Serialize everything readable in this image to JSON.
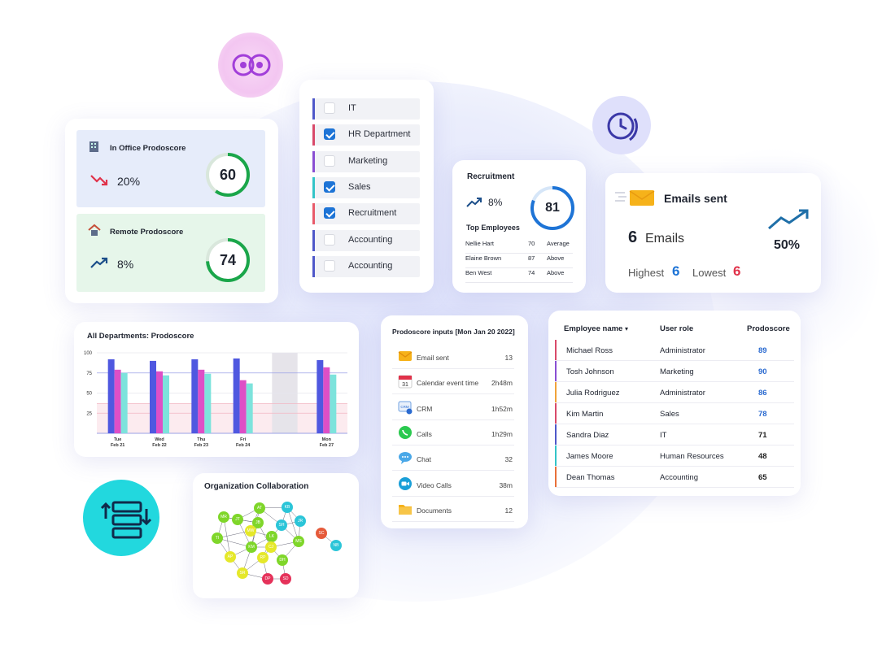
{
  "office_card": {
    "in_office": {
      "title": "In Office Prodoscore",
      "trend": "20%",
      "score": "60",
      "score_fraction": 0.6
    },
    "remote": {
      "title": "Remote Prodoscore",
      "trend": "8%",
      "score": "74",
      "score_fraction": 0.74
    }
  },
  "departments": [
    {
      "label": "IT",
      "checked": false,
      "accent": "#4f58c9"
    },
    {
      "label": "HR Department",
      "checked": true,
      "accent": "#d94a6a"
    },
    {
      "label": "Marketing",
      "checked": false,
      "accent": "#8a4fd3"
    },
    {
      "label": "Sales",
      "checked": true,
      "accent": "#33c4c8"
    },
    {
      "label": "Recruitment",
      "checked": true,
      "accent": "#e85a6a"
    },
    {
      "label": "Accounting",
      "checked": false,
      "accent": "#4f58c9"
    },
    {
      "label": "Accounting",
      "checked": false,
      "accent": "#4f58c9"
    }
  ],
  "recruitment": {
    "title": "Recruitment",
    "trend": "8%",
    "score": "81",
    "score_fraction": 0.81,
    "top_label": "Top Employees",
    "employees": [
      {
        "name": "Nellie Hart",
        "score": "70",
        "status": "Average"
      },
      {
        "name": "Elaine Brown",
        "score": "87",
        "status": "Above"
      },
      {
        "name": "Ben West",
        "score": "74",
        "status": "Above"
      }
    ]
  },
  "emails": {
    "title": "Emails sent",
    "count": "6",
    "count_label": "Emails",
    "percent": "50%",
    "highest_label": "Highest",
    "highest_value": "6",
    "lowest_label": "Lowest",
    "lowest_value": "6"
  },
  "chart_data": {
    "type": "bar",
    "title": "All Departments: Prodoscore",
    "categories": [
      "Tue Feb 21",
      "Wed Feb 22",
      "Thu Feb 23",
      "Fri Feb 24",
      "",
      "Mon Feb 27"
    ],
    "category_lines": [
      [
        "Tue",
        "Feb 21"
      ],
      [
        "Wed",
        "Feb 22"
      ],
      [
        "Thu",
        "Feb 23"
      ],
      [
        "Fri",
        "Feb 24"
      ],
      [
        "",
        ""
      ],
      [
        "Mon",
        "Feb 27"
      ]
    ],
    "series": [
      {
        "color": "#4f58e0",
        "values": [
          92,
          90,
          92,
          93,
          null,
          91
        ]
      },
      {
        "color": "#de4fc6",
        "values": [
          79,
          77,
          79,
          66,
          null,
          82
        ]
      },
      {
        "color": "#7de3dc",
        "values": [
          75,
          72,
          74,
          62,
          null,
          73
        ]
      }
    ],
    "yticks": [
      "100",
      "75",
      "50",
      "25"
    ],
    "ylim": [
      0,
      100
    ],
    "shaded_category_index": 4
  },
  "inputs": {
    "title": "Prodoscore inputs [Mon Jan 20 2022]",
    "items": [
      {
        "icon": "email-icon",
        "label": "Email sent",
        "value": "13"
      },
      {
        "icon": "calendar-icon",
        "label": "Calendar event time",
        "value": "2h48m",
        "day": "31"
      },
      {
        "icon": "crm-icon",
        "label": "CRM",
        "value": "1h52m",
        "tag": "CRM"
      },
      {
        "icon": "whatsapp-icon",
        "label": "Calls",
        "value": "1h29m"
      },
      {
        "icon": "chat-icon",
        "label": "Chat",
        "value": "32"
      },
      {
        "icon": "video-icon",
        "label": "Video Calls",
        "value": "38m"
      },
      {
        "icon": "folder-icon",
        "label": "Documents",
        "value": "12"
      }
    ]
  },
  "employee_table": {
    "headers": {
      "name": "Employee name",
      "sort": "▾",
      "role": "User role",
      "score": "Prodoscore"
    },
    "rows": [
      {
        "name": "Michael Ross",
        "role": "Administrator",
        "score": "89",
        "accent": "#d94a6a",
        "score_color": "#2a6ad0"
      },
      {
        "name": "Tosh Johnson",
        "role": "Marketing",
        "score": "90",
        "accent": "#8a4fd3",
        "score_color": "#2a6ad0"
      },
      {
        "name": "Julia Rodriguez",
        "role": "Administrator",
        "score": "86",
        "accent": "#f0a23a",
        "score_color": "#2a6ad0"
      },
      {
        "name": "Kim Martin",
        "role": "Sales",
        "score": "78",
        "accent": "#d94a6a",
        "score_color": "#2a6ad0"
      },
      {
        "name": "Sandra Diaz",
        "role": "IT",
        "score": "71",
        "accent": "#4f58c9",
        "score_color": "#222"
      },
      {
        "name": "James Moore",
        "role": "Human Resources",
        "score": "48",
        "accent": "#33c4c8",
        "score_color": "#222"
      },
      {
        "name": "Dean Thomas",
        "role": "Accounting",
        "score": "65",
        "accent": "#e8703a",
        "score_color": "#222"
      }
    ]
  },
  "collaboration": {
    "title": "Organization Collaboration",
    "nodes": [
      {
        "label": "MR",
        "color": "#7fd62a"
      },
      {
        "label": "JT",
        "color": "#7fd62a"
      },
      {
        "label": "AT",
        "color": "#7fd62a"
      },
      {
        "label": "KB",
        "color": "#2bc5d8"
      },
      {
        "label": "TI",
        "color": "#7fd62a"
      },
      {
        "label": "JB",
        "color": "#7fd62a"
      },
      {
        "label": "SH",
        "color": "#2bc5d8"
      },
      {
        "label": "JR",
        "color": "#2bc5d8"
      },
      {
        "label": "LK",
        "color": "#7fd62a"
      },
      {
        "label": "KM",
        "color": "#7fd62a"
      },
      {
        "label": "CJ",
        "color": "#e5e82a"
      },
      {
        "label": "MS",
        "color": "#7fd62a"
      },
      {
        "label": "AP",
        "color": "#e5e82a"
      },
      {
        "label": "RP",
        "color": "#e5e82a"
      },
      {
        "label": "DH",
        "color": "#7fd62a"
      },
      {
        "label": "SR",
        "color": "#e5e82a"
      },
      {
        "label": "MW",
        "color": "#e5e82a"
      },
      {
        "label": "DP",
        "color": "#e5325a"
      },
      {
        "label": "SD",
        "color": "#e5325a"
      },
      {
        "label": "SC",
        "color": "#e55a3a"
      },
      {
        "label": "NB",
        "color": "#2bc5d8"
      }
    ]
  },
  "colors": {
    "accent_green": "#1aa64a",
    "accent_blue": "#1e74d6",
    "accent_red": "#e0324a"
  }
}
